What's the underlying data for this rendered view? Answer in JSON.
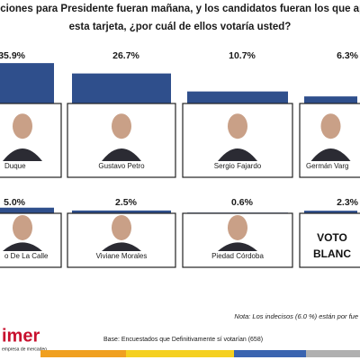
{
  "chart_data": {
    "type": "bar",
    "title": "cciones para Presidente fueran mañana, y los candidatos fueran los que ap",
    "subtitle": "esta tarjeta, ¿por cuál de ellos votaría usted?",
    "categories": [
      "Duque",
      "Gustavo Petro",
      "Sergio Fajardo",
      "Germán Varg",
      "o De La Calle",
      "Viviane Morales",
      "Piedad Córdoba",
      "VOTO BLANC"
    ],
    "values": [
      35.9,
      26.7,
      10.7,
      6.3,
      5.0,
      2.5,
      0.6,
      2.3
    ],
    "value_labels": [
      "35.9%",
      "26.7%",
      "10.7%",
      "6.3%",
      "5.0%",
      "2.5%",
      "0.6%",
      "2.3%"
    ],
    "color": "#2f4f8c",
    "note": "Nota: Los indecisos (6.0 %) están por fue",
    "base": "Base: Encuestados que Definitivamente sí votarían (658)",
    "logo": "imer",
    "logo_tagline": "empresa de mercadeo"
  }
}
